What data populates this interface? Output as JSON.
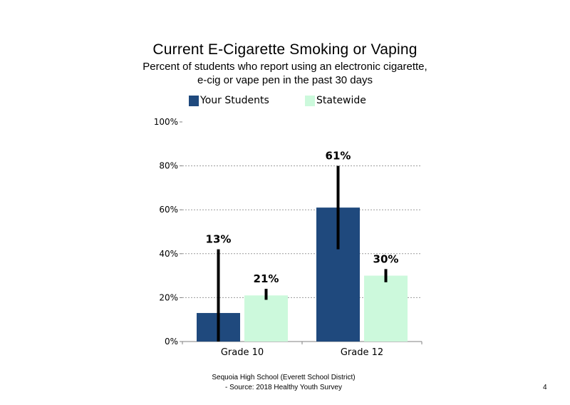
{
  "header": {
    "title": "Current E-Cigarette Smoking or Vaping",
    "subtitle_line1": "Percent of students who report using an electronic cigarette,",
    "subtitle_line2": "e-cig or vape pen in the past 30 days"
  },
  "legend": {
    "items": [
      {
        "label": "Your Students",
        "color": "#1f497d"
      },
      {
        "label": "Statewide",
        "color": "#ccf9dc"
      }
    ]
  },
  "chart_data": {
    "type": "bar",
    "categories": [
      "Grade 10",
      "Grade 12"
    ],
    "series": [
      {
        "name": "Your Students",
        "values": [
          13,
          61
        ],
        "labels": [
          "13%",
          "61%"
        ],
        "ci_low": [
          0,
          42
        ],
        "ci_high": [
          42,
          80
        ],
        "color": "#1f497d"
      },
      {
        "name": "Statewide",
        "values": [
          21,
          30
        ],
        "labels": [
          "21%",
          "30%"
        ],
        "ci_low": [
          19,
          27
        ],
        "ci_high": [
          24,
          33
        ],
        "color": "#ccf9dc"
      }
    ],
    "ylim": [
      0,
      100
    ],
    "yticks": [
      0,
      20,
      40,
      60,
      80,
      100
    ],
    "ytick_labels": [
      "0%",
      "20%",
      "40%",
      "60%",
      "80%",
      "100%"
    ],
    "grid": true,
    "legend_position": "top"
  },
  "footer": {
    "line1": "Sequoia High School (Everett School District)",
    "line2": "- Source: 2018 Healthy Youth Survey",
    "page_number": "4"
  }
}
